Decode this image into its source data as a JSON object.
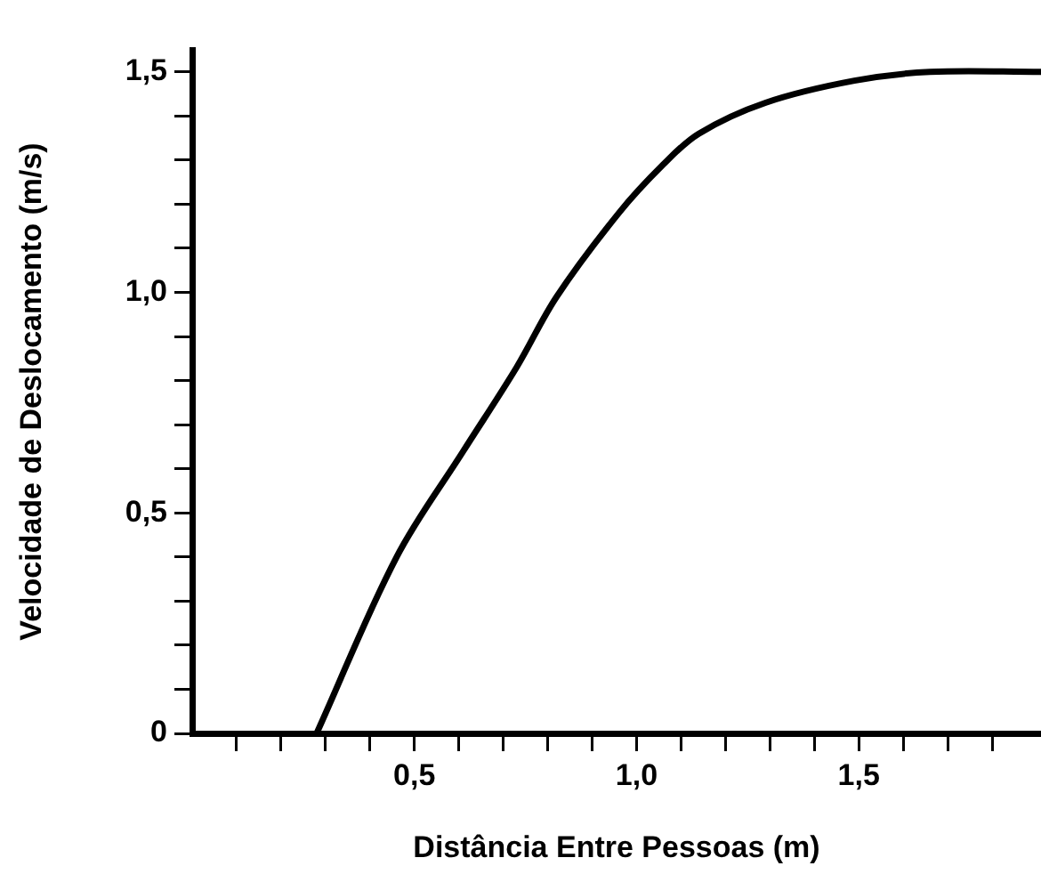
{
  "chart_data": {
    "type": "line",
    "xlabel": "Distância Entre Pessoas (m)",
    "ylabel": "Velocidade de Deslocamento (m/s)",
    "x": [
      0.28,
      0.46,
      0.61,
      0.73,
      0.82,
      0.96,
      1.06,
      1.14,
      1.29,
      1.49,
      1.66,
      1.91
    ],
    "series": [
      {
        "color": "#000000",
        "values": [
          0,
          0.4,
          0.64,
          0.83,
          0.99,
          1.18,
          1.29,
          1.36,
          1.43,
          1.48,
          1.5,
          1.5
        ]
      }
    ],
    "xlim": [
      0,
      1.91
    ],
    "ylim": [
      0,
      1.55
    ],
    "xticks": [
      {
        "value": 0.1,
        "label": null
      },
      {
        "value": 0.2,
        "label": null
      },
      {
        "value": 0.3,
        "label": null
      },
      {
        "value": 0.4,
        "label": null
      },
      {
        "value": 0.5,
        "label": "0,5"
      },
      {
        "value": 0.6,
        "label": null
      },
      {
        "value": 0.7,
        "label": null
      },
      {
        "value": 0.8,
        "label": null
      },
      {
        "value": 0.9,
        "label": null
      },
      {
        "value": 1.0,
        "label": "1,0"
      },
      {
        "value": 1.1,
        "label": null
      },
      {
        "value": 1.2,
        "label": null
      },
      {
        "value": 1.3,
        "label": null
      },
      {
        "value": 1.4,
        "label": null
      },
      {
        "value": 1.5,
        "label": "1,5"
      },
      {
        "value": 1.6,
        "label": null
      },
      {
        "value": 1.7,
        "label": null
      },
      {
        "value": 1.8,
        "label": null
      }
    ],
    "yticks": [
      0,
      {
        "value": 0.1,
        "label": null
      },
      {
        "value": 0.2,
        "label": null
      },
      {
        "value": 0.3,
        "label": null
      },
      {
        "value": 0.4,
        "label": null
      },
      {
        "value": 0.5,
        "label": "0,5"
      },
      {
        "value": 0.6,
        "label": null
      },
      {
        "value": 0.7,
        "label": null
      },
      {
        "value": 0.8,
        "label": null
      },
      {
        "value": 0.9,
        "label": null
      },
      {
        "value": 1.0,
        "label": "1,0"
      },
      {
        "value": 1.1,
        "label": null
      },
      {
        "value": 1.2,
        "label": null
      },
      {
        "value": 1.3,
        "label": null
      },
      {
        "value": 1.4,
        "label": null
      },
      {
        "value": 1.5,
        "label": "1,5"
      }
    ],
    "grid": false,
    "legend": false,
    "marker": "none",
    "line_style": "solid"
  }
}
